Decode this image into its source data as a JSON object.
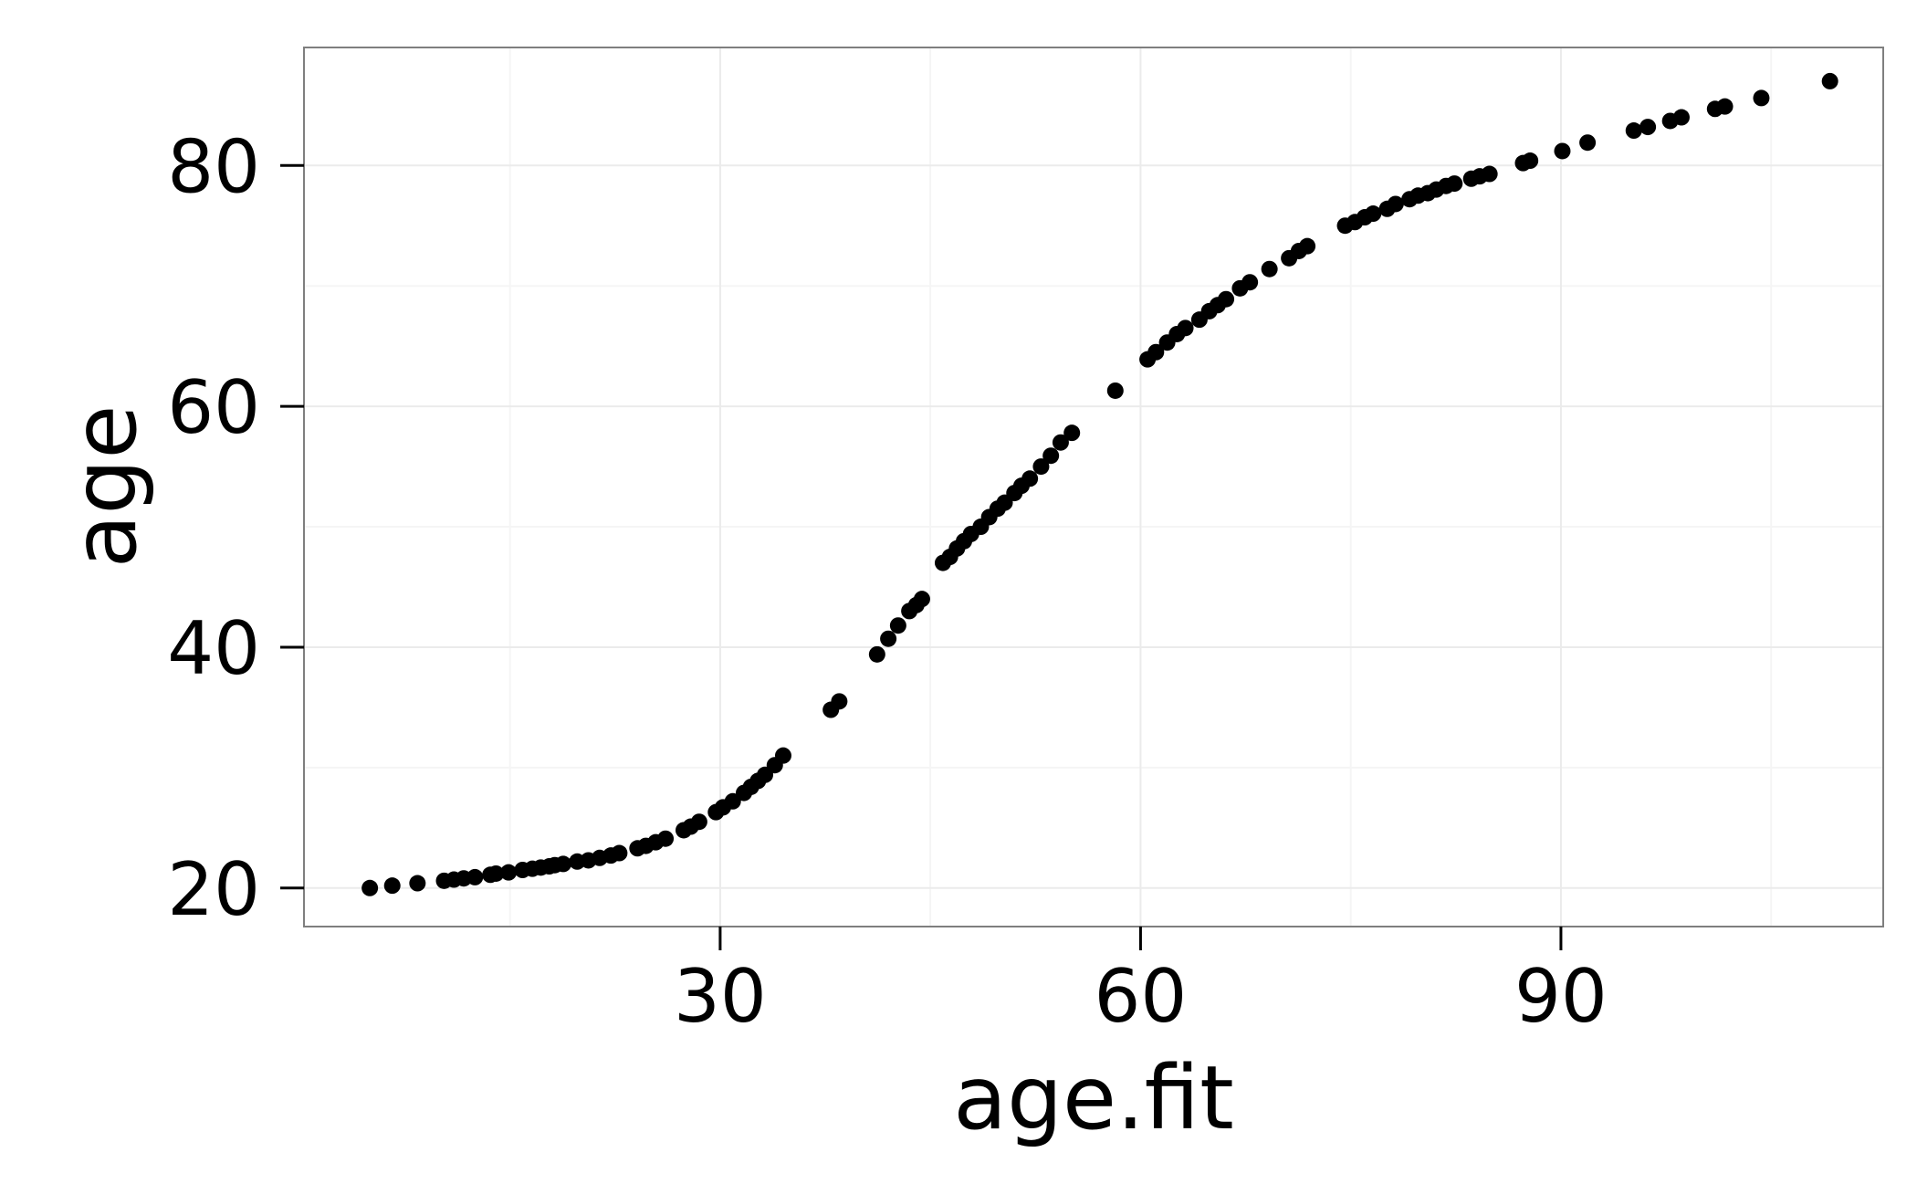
{
  "chart_data": {
    "type": "scatter",
    "xlabel": "age.fit",
    "ylabel": "age",
    "xlim": [
      0.3,
      113
    ],
    "ylim": [
      16.8,
      89.8
    ],
    "x_ticks": [
      30,
      60,
      90
    ],
    "y_ticks": [
      20,
      40,
      60,
      80
    ],
    "grid": true,
    "legend": "none",
    "point_color": "#000000",
    "panel_border_color": "#7f7f7f",
    "grid_color": "#ebebeb",
    "points": [
      {
        "x": 5.0,
        "y": 20
      },
      {
        "x": 6.6,
        "y": 20.2
      },
      {
        "x": 8.4,
        "y": 20.4
      },
      {
        "x": 10.3,
        "y": 20.6
      },
      {
        "x": 11.0,
        "y": 20.7
      },
      {
        "x": 11.7,
        "y": 20.8
      },
      {
        "x": 12.5,
        "y": 20.9
      },
      {
        "x": 13.6,
        "y": 21.1
      },
      {
        "x": 14.0,
        "y": 21.2
      },
      {
        "x": 14.9,
        "y": 21.3
      },
      {
        "x": 15.9,
        "y": 21.5
      },
      {
        "x": 16.6,
        "y": 21.6
      },
      {
        "x": 17.2,
        "y": 21.7
      },
      {
        "x": 17.8,
        "y": 21.8
      },
      {
        "x": 18.2,
        "y": 21.9
      },
      {
        "x": 18.8,
        "y": 22.0
      },
      {
        "x": 19.8,
        "y": 22.2
      },
      {
        "x": 20.6,
        "y": 22.3
      },
      {
        "x": 21.4,
        "y": 22.5
      },
      {
        "x": 22.2,
        "y": 22.7
      },
      {
        "x": 22.8,
        "y": 22.9
      },
      {
        "x": 24.1,
        "y": 23.3
      },
      {
        "x": 24.7,
        "y": 23.5
      },
      {
        "x": 25.4,
        "y": 23.8
      },
      {
        "x": 26.1,
        "y": 24.1
      },
      {
        "x": 27.4,
        "y": 24.8
      },
      {
        "x": 27.9,
        "y": 25.1
      },
      {
        "x": 28.5,
        "y": 25.5
      },
      {
        "x": 29.7,
        "y": 26.3
      },
      {
        "x": 30.2,
        "y": 26.7
      },
      {
        "x": 30.9,
        "y": 27.2
      },
      {
        "x": 31.7,
        "y": 27.9
      },
      {
        "x": 32.2,
        "y": 28.4
      },
      {
        "x": 32.7,
        "y": 28.9
      },
      {
        "x": 33.2,
        "y": 29.4
      },
      {
        "x": 33.9,
        "y": 30.2
      },
      {
        "x": 34.5,
        "y": 31.0
      },
      {
        "x": 37.9,
        "y": 34.8
      },
      {
        "x": 38.5,
        "y": 35.5
      },
      {
        "x": 41.2,
        "y": 39.4
      },
      {
        "x": 42.0,
        "y": 40.7
      },
      {
        "x": 42.7,
        "y": 41.8
      },
      {
        "x": 43.5,
        "y": 43.0
      },
      {
        "x": 44.0,
        "y": 43.5
      },
      {
        "x": 44.4,
        "y": 44.0
      },
      {
        "x": 45.9,
        "y": 47.0
      },
      {
        "x": 46.4,
        "y": 47.5
      },
      {
        "x": 46.9,
        "y": 48.2
      },
      {
        "x": 47.4,
        "y": 48.8
      },
      {
        "x": 47.9,
        "y": 49.4
      },
      {
        "x": 48.6,
        "y": 50.0
      },
      {
        "x": 49.2,
        "y": 50.8
      },
      {
        "x": 49.8,
        "y": 51.5
      },
      {
        "x": 50.3,
        "y": 52.0
      },
      {
        "x": 51.0,
        "y": 52.8
      },
      {
        "x": 51.5,
        "y": 53.4
      },
      {
        "x": 52.1,
        "y": 54.0
      },
      {
        "x": 52.9,
        "y": 55.0
      },
      {
        "x": 53.6,
        "y": 55.9
      },
      {
        "x": 54.3,
        "y": 57.0
      },
      {
        "x": 55.1,
        "y": 57.8
      },
      {
        "x": 58.2,
        "y": 61.3
      },
      {
        "x": 60.5,
        "y": 63.9
      },
      {
        "x": 61.1,
        "y": 64.5
      },
      {
        "x": 61.9,
        "y": 65.3
      },
      {
        "x": 62.6,
        "y": 66.0
      },
      {
        "x": 63.2,
        "y": 66.5
      },
      {
        "x": 64.2,
        "y": 67.2
      },
      {
        "x": 64.9,
        "y": 67.9
      },
      {
        "x": 65.5,
        "y": 68.4
      },
      {
        "x": 66.1,
        "y": 68.9
      },
      {
        "x": 67.1,
        "y": 69.8
      },
      {
        "x": 67.8,
        "y": 70.3
      },
      {
        "x": 69.2,
        "y": 71.4
      },
      {
        "x": 70.6,
        "y": 72.3
      },
      {
        "x": 71.3,
        "y": 72.9
      },
      {
        "x": 71.9,
        "y": 73.3
      },
      {
        "x": 74.6,
        "y": 75.0
      },
      {
        "x": 75.3,
        "y": 75.3
      },
      {
        "x": 76.0,
        "y": 75.7
      },
      {
        "x": 76.6,
        "y": 76.0
      },
      {
        "x": 77.6,
        "y": 76.4
      },
      {
        "x": 78.2,
        "y": 76.8
      },
      {
        "x": 79.2,
        "y": 77.2
      },
      {
        "x": 79.8,
        "y": 77.5
      },
      {
        "x": 80.5,
        "y": 77.7
      },
      {
        "x": 81.1,
        "y": 78.0
      },
      {
        "x": 81.8,
        "y": 78.3
      },
      {
        "x": 82.4,
        "y": 78.5
      },
      {
        "x": 83.6,
        "y": 78.9
      },
      {
        "x": 84.2,
        "y": 79.1
      },
      {
        "x": 84.9,
        "y": 79.3
      },
      {
        "x": 87.3,
        "y": 80.2
      },
      {
        "x": 87.8,
        "y": 80.4
      },
      {
        "x": 90.1,
        "y": 81.2
      },
      {
        "x": 91.9,
        "y": 81.9
      },
      {
        "x": 95.2,
        "y": 82.9
      },
      {
        "x": 96.2,
        "y": 83.2
      },
      {
        "x": 97.8,
        "y": 83.7
      },
      {
        "x": 98.6,
        "y": 84.0
      },
      {
        "x": 101.0,
        "y": 84.7
      },
      {
        "x": 101.7,
        "y": 84.9
      },
      {
        "x": 104.3,
        "y": 85.6
      },
      {
        "x": 109.2,
        "y": 87.0
      }
    ]
  }
}
